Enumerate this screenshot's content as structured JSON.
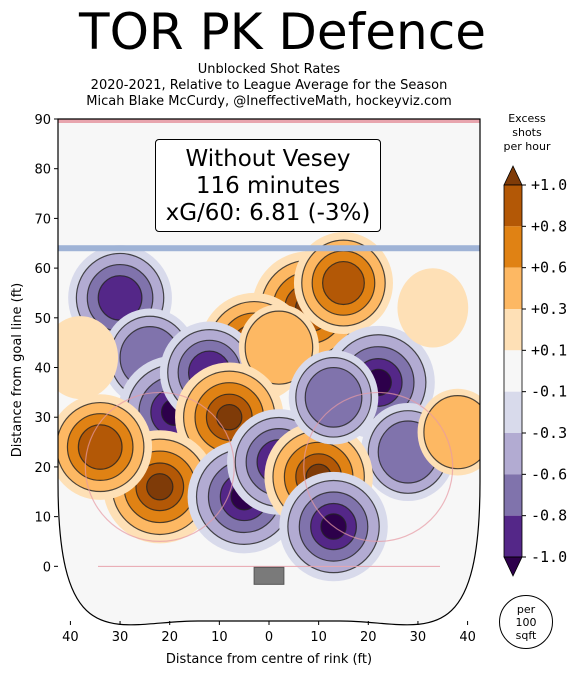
{
  "title": "TOR PK Defence",
  "subtitle_lines": [
    "Unblocked Shot Rates",
    "2020-2021, Relative to League Average for the Season",
    "Micah Blake McCurdy, @IneffectiveMath, hockeyviz.com"
  ],
  "annotation": {
    "line1": "Without Vesey",
    "line2": "116 minutes",
    "line3": "xG/60: 6.81 (-3%)"
  },
  "colorbar": {
    "title": "Excess\nshots\nper hour",
    "levels": [
      {
        "label": "+1.0",
        "color": "#7f3b08"
      },
      {
        "label": "+0.8",
        "color": "#b35806"
      },
      {
        "label": "+0.6",
        "color": "#e08214"
      },
      {
        "label": "+0.3",
        "color": "#fdb863"
      },
      {
        "label": "+0.1",
        "color": "#fee0b6"
      },
      {
        "label": "-0.1",
        "color": "#f7f7f7"
      },
      {
        "label": "-0.3",
        "color": "#d8daeb"
      },
      {
        "label": "-0.6",
        "color": "#b2abd2"
      },
      {
        "label": "-0.8",
        "color": "#8073ac"
      },
      {
        "label": "-1.0",
        "color": "#542788"
      }
    ],
    "top_color": "#7f3b08",
    "bottom_color": "#2d004b",
    "unit_label": "per\n100\nsqft"
  },
  "chart_data": {
    "type": "heatmap",
    "title": "TOR PK Defence",
    "xlabel": "Distance from centre of rink (ft)",
    "ylabel": "Distance from goal line (ft)",
    "xlim": [
      -42.5,
      42.5
    ],
    "ylim": [
      -11,
      90
    ],
    "x_ticks": [
      "40",
      "30",
      "20",
      "10",
      "0",
      "10",
      "20",
      "30",
      "40"
    ],
    "x_tick_values": [
      -40,
      -30,
      -20,
      -10,
      0,
      10,
      20,
      30,
      40
    ],
    "y_ticks": [
      0,
      10,
      20,
      30,
      40,
      50,
      60,
      70,
      80,
      90
    ],
    "blobs": [
      {
        "x": 8,
        "y": 52,
        "value": 1.0
      },
      {
        "x": -3,
        "y": 44,
        "value": 0.9
      },
      {
        "x": 15,
        "y": 57,
        "value": 0.7
      },
      {
        "x": -30,
        "y": 54,
        "value": -0.8
      },
      {
        "x": -24,
        "y": 42,
        "value": -0.6
      },
      {
        "x": -19,
        "y": 31,
        "value": -1.0
      },
      {
        "x": -12,
        "y": 39,
        "value": -0.7
      },
      {
        "x": 2,
        "y": 44,
        "value": 0.3
      },
      {
        "x": -8,
        "y": 30,
        "value": 0.9
      },
      {
        "x": -22,
        "y": 16,
        "value": 1.0
      },
      {
        "x": -34,
        "y": 24,
        "value": 0.8
      },
      {
        "x": -5,
        "y": 14,
        "value": -1.0
      },
      {
        "x": 2,
        "y": 21,
        "value": -0.8
      },
      {
        "x": 22,
        "y": 37,
        "value": -1.0
      },
      {
        "x": 28,
        "y": 23,
        "value": -0.6
      },
      {
        "x": 10,
        "y": 18,
        "value": 0.9
      },
      {
        "x": 13,
        "y": 8,
        "value": -0.9
      },
      {
        "x": 13,
        "y": 34,
        "value": -0.5
      },
      {
        "x": 38,
        "y": 27,
        "value": 0.3
      },
      {
        "x": -38,
        "y": 42,
        "value": 0.2
      },
      {
        "x": 33,
        "y": 52,
        "value": 0.1
      }
    ]
  }
}
